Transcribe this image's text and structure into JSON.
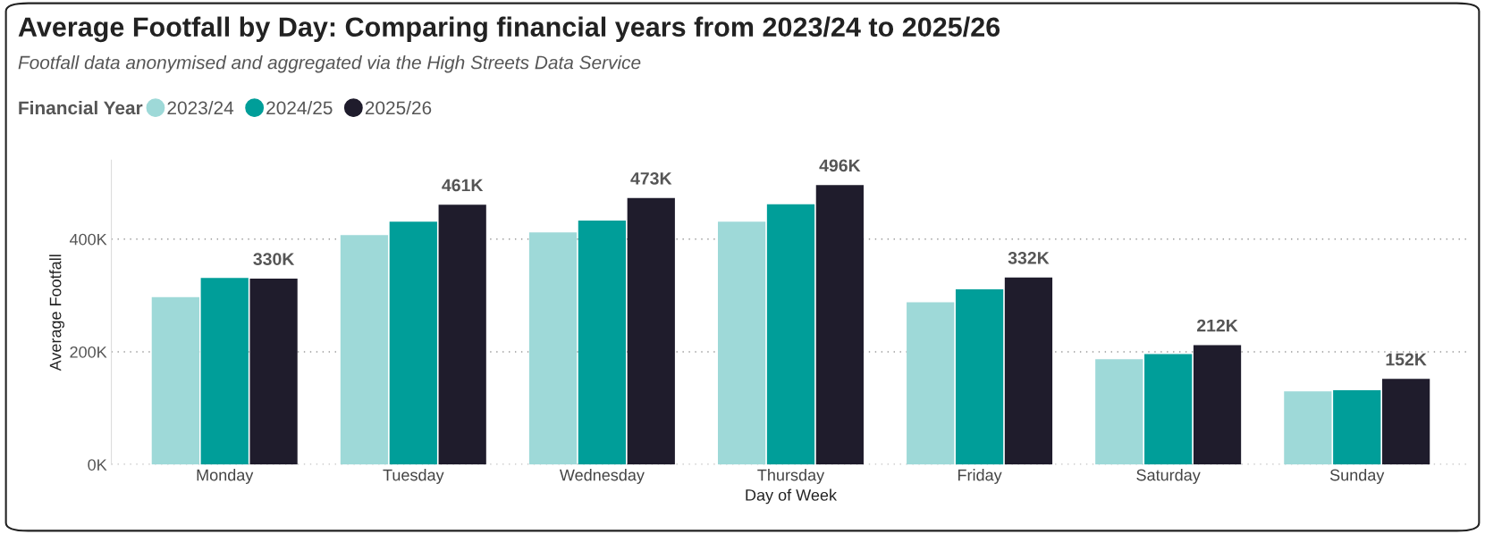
{
  "chart_data": {
    "type": "bar",
    "title": "Average Footfall by Day: Comparing financial years from 2023/24 to 2025/26",
    "subtitle": "Footfall data anonymised and aggregated via the High Streets Data Service",
    "xlabel": "Day of Week",
    "ylabel": "Average Footfall",
    "legend_title": "Financial Year",
    "categories": [
      "Monday",
      "Tuesday",
      "Wednesday",
      "Thursday",
      "Friday",
      "Saturday",
      "Sunday"
    ],
    "series": [
      {
        "name": "2023/24",
        "color": "#9ed9d8",
        "values": [
          297,
          407,
          412,
          431,
          288,
          187,
          130
        ]
      },
      {
        "name": "2024/25",
        "color": "#009e99",
        "values": [
          331,
          431,
          433,
          462,
          311,
          196,
          132
        ]
      },
      {
        "name": "2025/26",
        "color": "#1f1c2c",
        "values": [
          330,
          461,
          473,
          496,
          332,
          212,
          152
        ],
        "value_labels": [
          "330K",
          "461K",
          "473K",
          "496K",
          "332K",
          "212K",
          "152K"
        ]
      }
    ],
    "ylim": [
      0,
      540
    ],
    "yticks": [
      {
        "value": 0,
        "label": "0K"
      },
      {
        "value": 200,
        "label": "200K"
      },
      {
        "value": 400,
        "label": "400K"
      }
    ],
    "grid": "y",
    "legend": "top left",
    "marker": "circle"
  }
}
